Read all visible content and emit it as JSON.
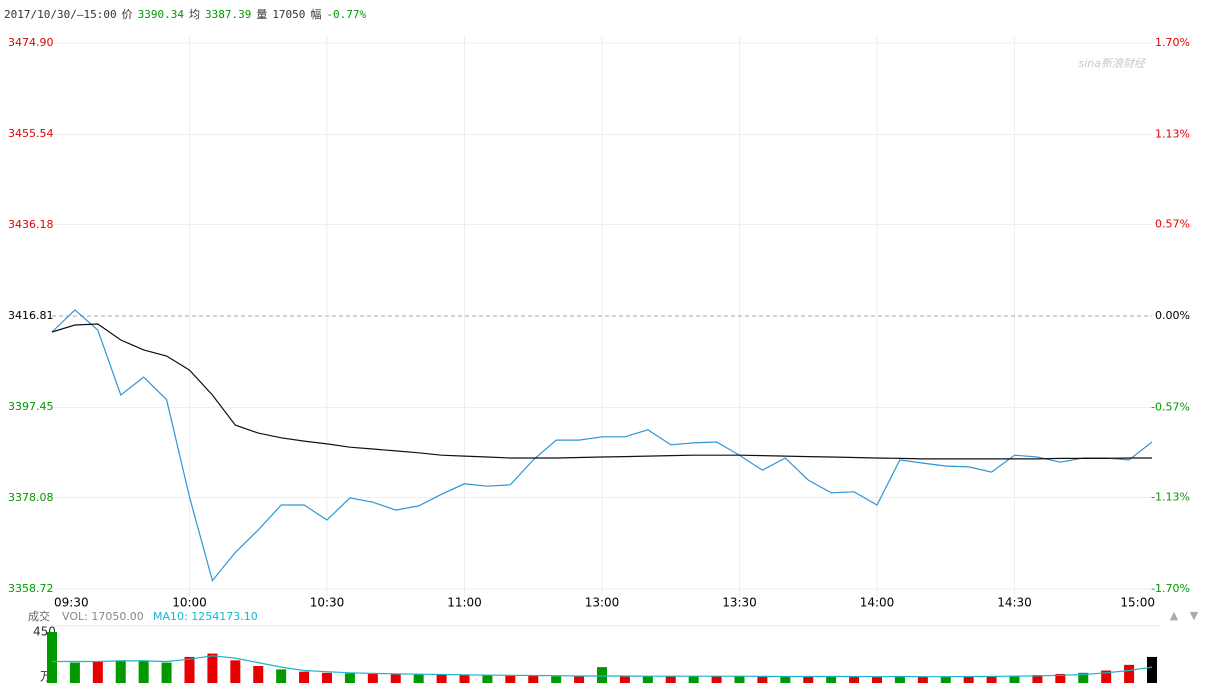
{
  "header": {
    "datetime": "2017/10/30/—15:00",
    "price_label": "价",
    "price": "3390.34",
    "avg_label": "均",
    "avg": "3387.39",
    "vol_label": "量",
    "vol": "17050",
    "chg_label": "幅",
    "chg": "-0.77%"
  },
  "watermark": "sina新浪财经",
  "controls": [
    "▲",
    "▼"
  ],
  "chart_data": [
    {
      "type": "line",
      "categories": [
        "09:30",
        null,
        null,
        null,
        null,
        null,
        "10:00",
        null,
        null,
        null,
        null,
        null,
        "10:30",
        null,
        null,
        null,
        null,
        null,
        "11:00",
        null,
        null,
        null,
        null,
        null,
        "13:00",
        null,
        null,
        null,
        null,
        null,
        "13:30",
        null,
        null,
        null,
        null,
        null,
        "14:00",
        null,
        null,
        null,
        null,
        null,
        "14:30",
        null,
        null,
        null,
        null,
        null,
        "15:00"
      ],
      "series": [
        {
          "color": "#2e96d6",
          "values": [
            3413.4,
            3418.1,
            3413.8,
            3400.0,
            3403.8,
            3399.0,
            3378.3,
            3360.5,
            3366.5,
            3371.3,
            3376.6,
            3376.6,
            3373.4,
            3378.1,
            3377.2,
            3375.5,
            3376.4,
            3378.9,
            3381.1,
            3380.6,
            3380.9,
            3386.2,
            3390.4,
            3390.4,
            3391.1,
            3391.1,
            3392.6,
            3389.4,
            3389.8,
            3390.0,
            3387.2,
            3384.0,
            3386.6,
            3381.9,
            3379.2,
            3379.4,
            3376.6,
            3386.2,
            3385.5,
            3384.9,
            3384.7,
            3383.6,
            3387.2,
            3386.8,
            3385.7,
            3386.6,
            3386.6,
            3386.2,
            3390.0
          ]
        },
        {
          "color": "#111111",
          "values": [
            3413.4,
            3414.9,
            3415.1,
            3411.7,
            3409.6,
            3408.3,
            3405.3,
            3400.0,
            3393.6,
            3391.9,
            3390.9,
            3390.2,
            3389.6,
            3388.9,
            3388.5,
            3388.1,
            3387.7,
            3387.2,
            3387.0,
            3386.8,
            3386.6,
            3386.6,
            3386.6,
            3386.7,
            3386.8,
            3386.9,
            3387.0,
            3387.1,
            3387.2,
            3387.2,
            3387.2,
            3387.1,
            3387.0,
            3386.9,
            3386.8,
            3386.7,
            3386.6,
            3386.5,
            3386.4,
            3386.4,
            3386.4,
            3386.4,
            3386.4,
            3386.4,
            3386.5,
            3386.5,
            3386.5,
            3386.6,
            3386.6
          ]
        }
      ],
      "ylim": [
        3358.72,
        3474.9
      ],
      "yticks": [
        {
          "value": 3474.9,
          "label": "3474.90"
        },
        3455.54,
        3436.18,
        3416.81,
        3397.45,
        3378.08,
        3358.72
      ],
      "y2lim": [
        -1.7,
        1.7
      ],
      "y2ticks": [
        {
          "value": 1.7,
          "label": "1.70%"
        },
        {
          "value": 1.13,
          "label": "1.13%"
        },
        {
          "value": 0.57,
          "label": "0.57%"
        },
        {
          "value": 0,
          "label": "0.00%"
        },
        {
          "value": -0.57,
          "label": "-0.57%"
        },
        {
          "value": -1.13,
          "label": "-1.13%"
        },
        {
          "value": -1.7,
          "label": "-1.70%"
        }
      ],
      "up_color": "#e60000",
      "down_color": "#009900",
      "flat_color": "#000000",
      "grid": true
    },
    {
      "type": "bar",
      "title": "成交",
      "vol_text": "VOL: 17050.00",
      "ma_text": "MA10: 1254173.10",
      "unit": "万",
      "ylim": [
        0,
        450
      ],
      "yticks": [
        450
      ],
      "series": [
        {
          "colors": [
            "#009900",
            "#009900",
            "#e60000",
            "#009900",
            "#009900",
            "#009900",
            "#e60000",
            "#e60000",
            "#e60000",
            "#e60000",
            "#009900",
            "#e60000",
            "#e60000",
            "#009900",
            "#e60000",
            "#e60000",
            "#009900",
            "#e60000",
            "#e60000",
            "#009900",
            "#e60000",
            "#e60000",
            "#009900",
            "#e60000",
            "#009900",
            "#e60000",
            "#009900",
            "#e60000",
            "#009900",
            "#e60000",
            "#009900",
            "#e60000",
            "#009900",
            "#e60000",
            "#009900",
            "#e60000",
            "#e60000",
            "#009900",
            "#e60000",
            "#009900",
            "#e60000",
            "#e60000",
            "#009900",
            "#e60000",
            "#e60000",
            "#009900",
            "#e60000",
            "#e60000",
            "#000000"
          ],
          "values": [
            450,
            180,
            190,
            200,
            200,
            180,
            230,
            260,
            200,
            150,
            120,
            100,
            90,
            85,
            80,
            80,
            75,
            75,
            70,
            70,
            65,
            65,
            60,
            60,
            140,
            60,
            60,
            60,
            60,
            60,
            60,
            55,
            55,
            60,
            60,
            55,
            55,
            60,
            55,
            55,
            60,
            60,
            65,
            70,
            80,
            90,
            110,
            160,
            230
          ]
        },
        {
          "color": "#19b5cc",
          "values": [
            190,
            190,
            190,
            195,
            195,
            190,
            210,
            240,
            220,
            180,
            140,
            110,
            100,
            90,
            85,
            80,
            78,
            75,
            72,
            70,
            68,
            66,
            64,
            62,
            62,
            62,
            60,
            60,
            60,
            60,
            60,
            58,
            57,
            57,
            58,
            57,
            56,
            57,
            56,
            56,
            57,
            58,
            60,
            63,
            68,
            75,
            90,
            110,
            140
          ]
        }
      ]
    }
  ]
}
